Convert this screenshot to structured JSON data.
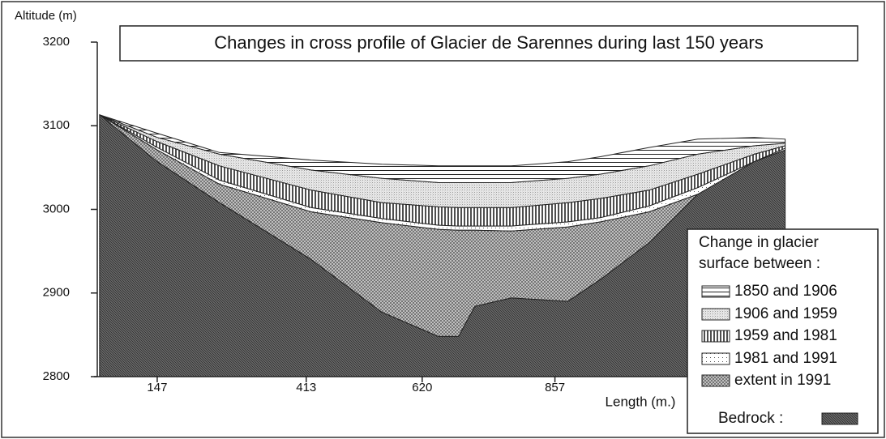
{
  "chart_data": {
    "type": "area",
    "title": "Changes in cross profile of Glacier de Sarennes during last 150 years",
    "ylabel": "Altitude (m)",
    "xlabel": "Length (m.)",
    "legend_title": [
      "Change in glacier",
      "surface between :"
    ],
    "x": [
      44,
      147,
      258,
      422,
      548,
      649,
      685,
      714,
      779,
      880,
      938,
      1025,
      1112,
      1213,
      1268
    ],
    "series": [
      {
        "name": "1850 and 1906",
        "color": "#222222",
        "pattern": "hlines",
        "values": [
          3113,
          3091,
          3068,
          3059,
          3054,
          3052,
          3052,
          3052,
          3052,
          3057,
          3063,
          3074,
          3084,
          3086,
          3084
        ]
      },
      {
        "name": "1906 and 1959",
        "color": "#999999",
        "pattern": "stipple",
        "values": [
          3113,
          3086,
          3066,
          3047,
          3037,
          3032,
          3032,
          3032,
          3032,
          3037,
          3042,
          3052,
          3066,
          3076,
          3079
        ]
      },
      {
        "name": "1959 and 1981",
        "color": "#222222",
        "pattern": "vlines",
        "values": [
          3113,
          3081,
          3052,
          3023,
          3008,
          3003,
          3002,
          3002,
          3002,
          3008,
          3013,
          3023,
          3042,
          3066,
          3076
        ]
      },
      {
        "name": "1981 and 1991",
        "color": "#555555",
        "pattern": "dots",
        "values": [
          3113,
          3074,
          3035,
          3002,
          2989,
          2981,
          2980,
          2980,
          2980,
          2985,
          2990,
          3004,
          3026,
          3057,
          3073
        ]
      },
      {
        "name": "extent in 1991",
        "color": "#666666",
        "pattern": "crosshatch",
        "values": [
          3113,
          3071,
          3030,
          2997,
          2984,
          2976,
          2975,
          2975,
          2974,
          2979,
          2985,
          2997,
          3018,
          3052,
          3071
        ]
      },
      {
        "name": "Bedrock :",
        "color": "#333333",
        "pattern": "diagonal",
        "values": [
          3113,
          3057,
          3008,
          2940,
          2877,
          2848,
          2848,
          2884,
          2894,
          2890,
          2916,
          2960,
          3018,
          3057,
          3071
        ]
      }
    ],
    "xlim": [
      40,
      1270
    ],
    "ylim": [
      2800,
      3200
    ],
    "xticks": [
      147,
      413,
      620,
      857
    ],
    "yticks": [
      2800,
      2900,
      3000,
      3100,
      3200
    ]
  }
}
